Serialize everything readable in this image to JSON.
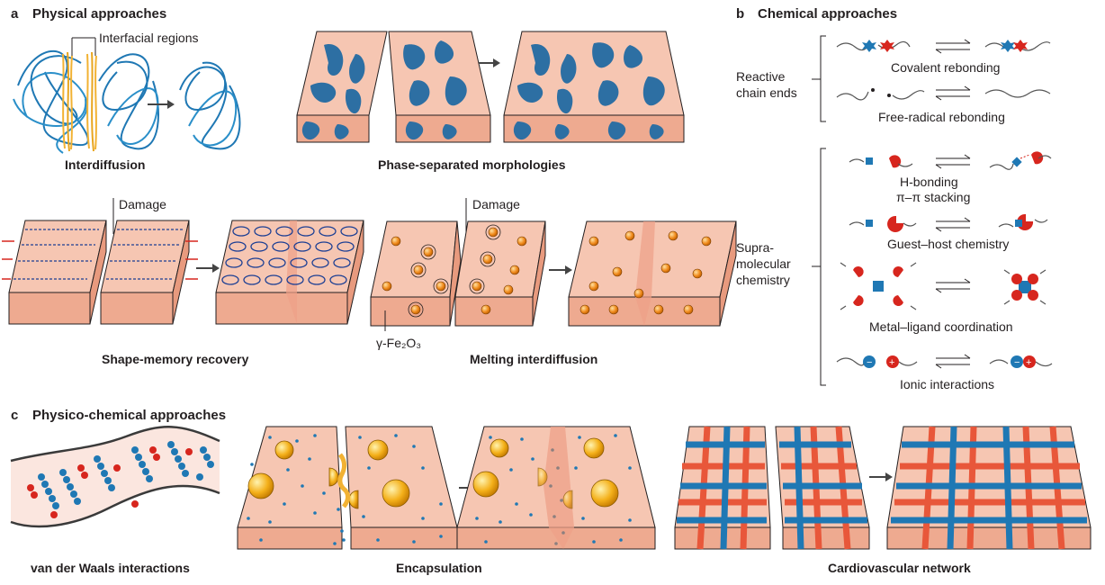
{
  "panel_a": {
    "letter": "a",
    "title": "Physical approaches",
    "interfacial_label": "Interfacial regions",
    "interdiffusion_caption": "Interdiffusion",
    "phase_caption": "Phase-separated morphologies",
    "damage_label_1": "Damage",
    "damage_label_2": "Damage",
    "shape_memory_caption": "Shape-memory recovery",
    "fe2o3_label": "γ-Fe₂O₃",
    "melting_caption": "Melting interdiffusion"
  },
  "panel_b": {
    "letter": "b",
    "title": "Chemical approaches",
    "reactive_label_1": "Reactive",
    "reactive_label_2": "chain ends",
    "covalent_label": "Covalent rebonding",
    "radical_label": "Free-radical rebonding",
    "supra_label_1": "Supra-",
    "supra_label_2": "molecular",
    "supra_label_3": "chemistry",
    "hbond_label_1": "H-bonding",
    "hbond_label_2": "π–π stacking",
    "guest_label": "Guest–host chemistry",
    "metal_label": "Metal–ligand coordination",
    "ionic_label": "Ionic interactions"
  },
  "panel_c": {
    "letter": "c",
    "title": "Physico-chemical approaches",
    "vdw_caption": "van der Waals interactions",
    "encap_caption": "Encapsulation",
    "cardio_caption": "Cardiovascular network"
  },
  "colors": {
    "matrix": "#f6c6b2",
    "blue": "#1f78b4",
    "red": "#d7261e",
    "gold": "#f2b233",
    "orange_vessel": "#e8573a"
  }
}
